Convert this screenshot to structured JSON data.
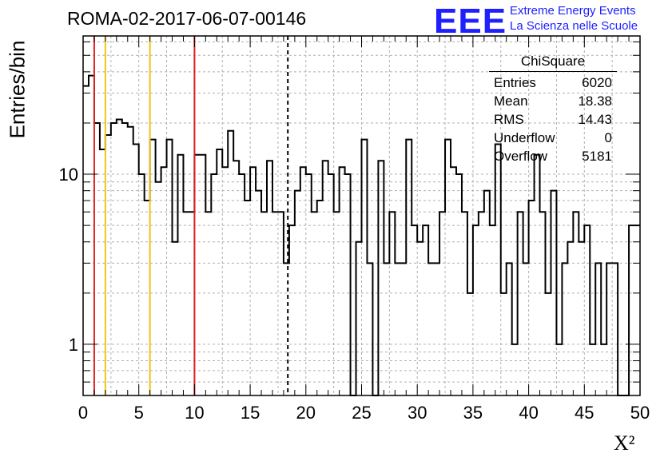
{
  "title": "ROMA-02-2017-06-07-00146",
  "logo": {
    "letters": "EEE",
    "line1": "Extreme Energy Events",
    "line2": "La Scienza nelle Scuole",
    "color": "#2020ff"
  },
  "stats_box": {
    "title": "ChiSquare",
    "rows": [
      {
        "label": "Entries",
        "value": "6020"
      },
      {
        "label": "Mean",
        "value": "18.38"
      },
      {
        "label": "RMS",
        "value": "14.43"
      },
      {
        "label": "Underflow",
        "value": "0"
      },
      {
        "label": "Overflow",
        "value": "5181"
      }
    ]
  },
  "chart_data": {
    "type": "histogram",
    "title": "ROMA-02-2017-06-07-00146",
    "xlabel": "X²",
    "ylabel": "Entries/bin",
    "x_range": [
      0,
      50
    ],
    "y_range": [
      0.5,
      65
    ],
    "y_scale": "log",
    "x_ticks": [
      "0",
      "5",
      "10",
      "15",
      "20",
      "25",
      "30",
      "35",
      "40",
      "45",
      "50"
    ],
    "y_tick_labels": [
      {
        "value": 1,
        "label": "1"
      },
      {
        "value": 10,
        "label": "10"
      }
    ],
    "grid": true,
    "bin_width": 0.5,
    "bin_contents": [
      33,
      38,
      20,
      14,
      17,
      20,
      21,
      20,
      19,
      15,
      10,
      7,
      16,
      9,
      11,
      16,
      4,
      13,
      6,
      6,
      13,
      13,
      6,
      10,
      14,
      11,
      18,
      12,
      10,
      7,
      11,
      8,
      6,
      12,
      6,
      6,
      3,
      5,
      8,
      11,
      10,
      6,
      7,
      12,
      10,
      6,
      11,
      10,
      0.3,
      4,
      16,
      3,
      0.3,
      12,
      3,
      6,
      3,
      3,
      16,
      5,
      4,
      5,
      3,
      3,
      6,
      16,
      11,
      10,
      6,
      2,
      5,
      6,
      8,
      5,
      15,
      2,
      3,
      1,
      6,
      3,
      7,
      13,
      6,
      2,
      8,
      1,
      3,
      4,
      6,
      4,
      5,
      1,
      3,
      1,
      3,
      3,
      0.3,
      0.3,
      5,
      5
    ],
    "vertical_lines": [
      {
        "x": 1,
        "color": "#e02020",
        "style": "solid"
      },
      {
        "x": 2,
        "color": "#f2c21b",
        "style": "solid"
      },
      {
        "x": 6,
        "color": "#f2c21b",
        "style": "solid"
      },
      {
        "x": 10,
        "color": "#e02020",
        "style": "solid"
      },
      {
        "x": 18.38,
        "color": "#000000",
        "style": "dashed"
      }
    ]
  }
}
